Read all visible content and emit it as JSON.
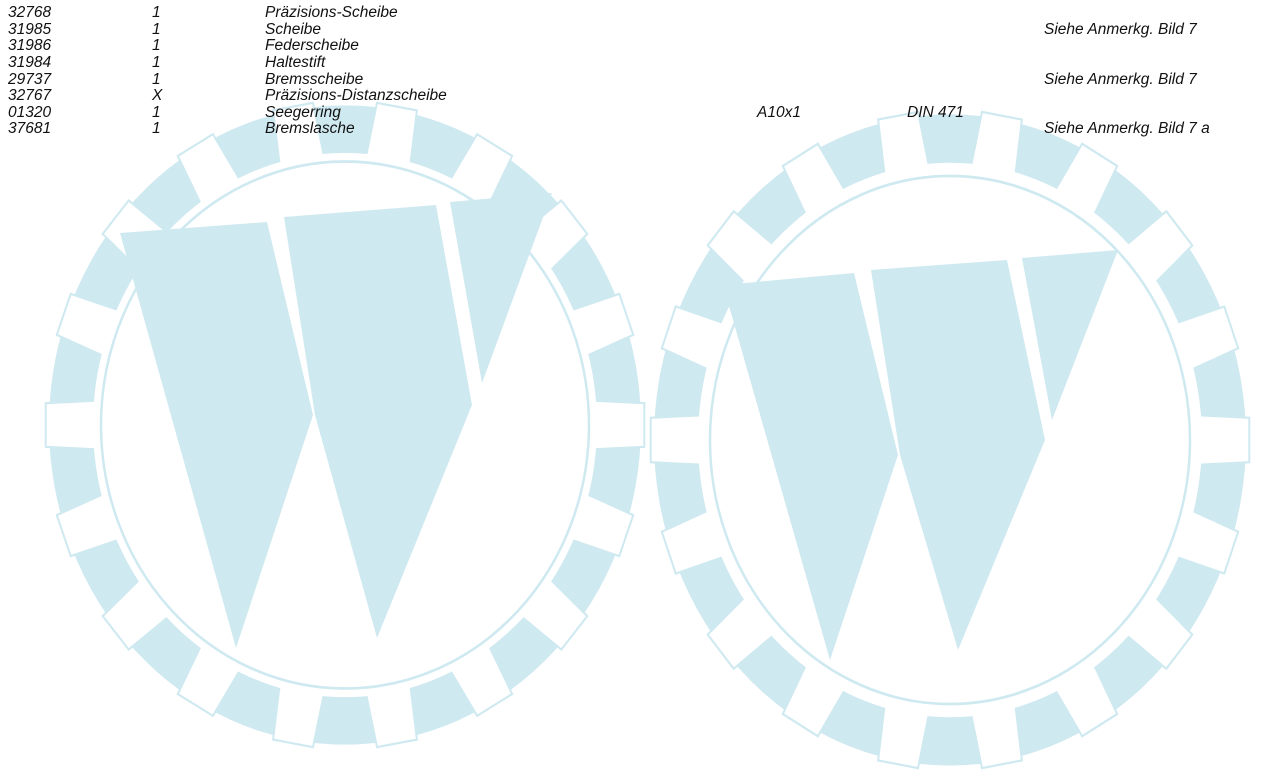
{
  "parts_list": {
    "rows": [
      {
        "part_no": "32768",
        "qty": "1",
        "name": "Präzisions-Scheibe",
        "size": "",
        "norm": "",
        "note": ""
      },
      {
        "part_no": "31985",
        "qty": "1",
        "name": "Scheibe",
        "size": "",
        "norm": "",
        "note": "Siehe Anmerkg. Bild 7"
      },
      {
        "part_no": "31986",
        "qty": "1",
        "name": "Federscheibe",
        "size": "",
        "norm": "",
        "note": ""
      },
      {
        "part_no": "31984",
        "qty": "1",
        "name": "Haltestift",
        "size": "",
        "norm": "",
        "note": ""
      },
      {
        "part_no": "29737",
        "qty": "1",
        "name": "Bremsscheibe",
        "size": "",
        "norm": "",
        "note": "Siehe Anmerkg. Bild 7"
      },
      {
        "part_no": "32767",
        "qty": "X",
        "name": "Präzisions-Distanzscheibe",
        "size": "",
        "norm": "",
        "note": ""
      },
      {
        "part_no": "01320",
        "qty": "1",
        "name": "Seegerring",
        "size": "A10x1",
        "norm": "DIN 471",
        "note": ""
      },
      {
        "part_no": "37681",
        "qty": "1",
        "name": "Bremslasche",
        "size": "",
        "norm": "",
        "note": "Siehe Anmerkg. Bild 7 a"
      }
    ]
  },
  "watermark": {
    "color": "#cfe9f1",
    "icon": "gear-w-logo-icon"
  }
}
